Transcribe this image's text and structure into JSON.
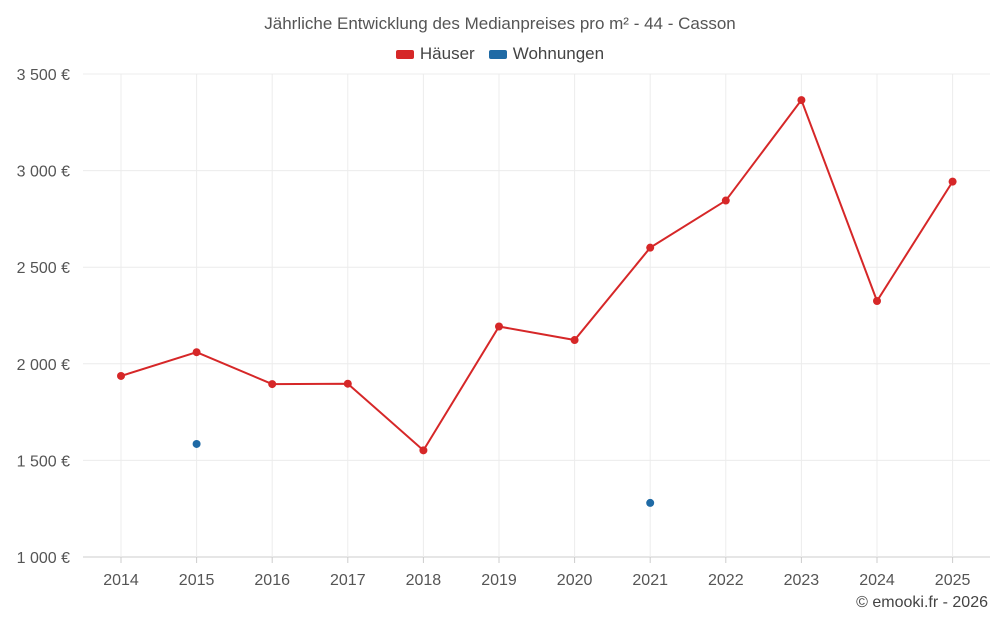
{
  "chart_data": {
    "type": "line",
    "title": "Jährliche Entwicklung des Medianpreises pro m² - 44 - Casson",
    "categories": [
      "2014",
      "2015",
      "2016",
      "2017",
      "2018",
      "2019",
      "2020",
      "2021",
      "2022",
      "2023",
      "2024",
      "2025"
    ],
    "series": [
      {
        "name": "Häuser",
        "color": "#d62728",
        "values": [
          1937,
          2060,
          1895,
          1897,
          1552,
          2193,
          2123,
          2601,
          2845,
          3365,
          2325,
          2943
        ]
      },
      {
        "name": "Wohnungen",
        "color": "#1f6aa5",
        "values": [
          null,
          1585,
          null,
          null,
          null,
          null,
          null,
          1280,
          null,
          null,
          null,
          null
        ]
      }
    ],
    "ylim": [
      1000,
      3500
    ],
    "yticks": [
      1000,
      1500,
      2000,
      2500,
      3000,
      3500
    ],
    "ytick_labels": [
      "1 000 €",
      "1 500 €",
      "2 000 €",
      "2 500 €",
      "3 000 €",
      "3 500 €"
    ],
    "xlabel": "",
    "ylabel": "",
    "grid": true,
    "legend_position": "top-center"
  },
  "footer": {
    "copyright": "© emooki.fr - 2026"
  }
}
